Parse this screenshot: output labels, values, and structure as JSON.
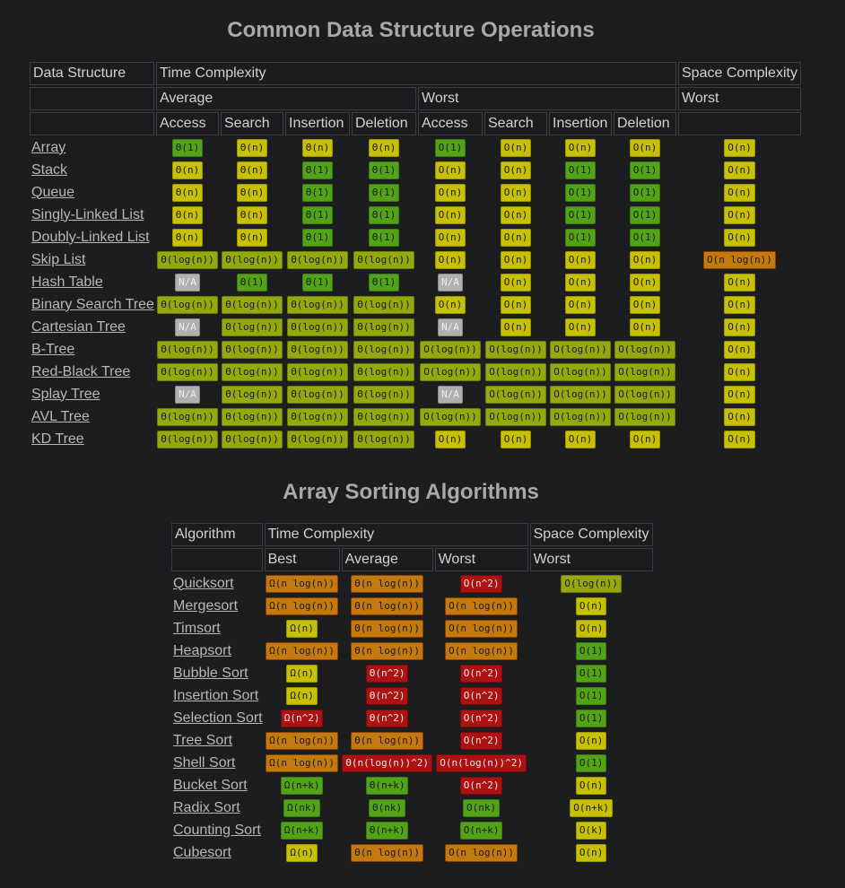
{
  "ops": {
    "title": "Common Data Structure Operations",
    "header": {
      "data_structure": "Data Structure",
      "time_complexity": "Time Complexity",
      "space_complexity": "Space Complexity",
      "average": "Average",
      "worst": "Worst",
      "space_worst": "Worst",
      "cols": [
        "Access",
        "Search",
        "Insertion",
        "Deletion",
        "Access",
        "Search",
        "Insertion",
        "Deletion"
      ]
    },
    "rows": [
      {
        "name": "Array",
        "cells": [
          [
            "Θ(1)",
            "green"
          ],
          [
            "Θ(n)",
            "yellow"
          ],
          [
            "Θ(n)",
            "yellow"
          ],
          [
            "Θ(n)",
            "yellow"
          ],
          [
            "O(1)",
            "green"
          ],
          [
            "O(n)",
            "yellow"
          ],
          [
            "O(n)",
            "yellow"
          ],
          [
            "O(n)",
            "yellow"
          ],
          [
            "O(n)",
            "yellow"
          ]
        ]
      },
      {
        "name": "Stack",
        "cells": [
          [
            "Θ(n)",
            "yellow"
          ],
          [
            "Θ(n)",
            "yellow"
          ],
          [
            "Θ(1)",
            "green"
          ],
          [
            "Θ(1)",
            "green"
          ],
          [
            "O(n)",
            "yellow"
          ],
          [
            "O(n)",
            "yellow"
          ],
          [
            "O(1)",
            "green"
          ],
          [
            "O(1)",
            "green"
          ],
          [
            "O(n)",
            "yellow"
          ]
        ]
      },
      {
        "name": "Queue",
        "cells": [
          [
            "Θ(n)",
            "yellow"
          ],
          [
            "Θ(n)",
            "yellow"
          ],
          [
            "Θ(1)",
            "green"
          ],
          [
            "Θ(1)",
            "green"
          ],
          [
            "O(n)",
            "yellow"
          ],
          [
            "O(n)",
            "yellow"
          ],
          [
            "O(1)",
            "green"
          ],
          [
            "O(1)",
            "green"
          ],
          [
            "O(n)",
            "yellow"
          ]
        ]
      },
      {
        "name": "Singly-Linked List",
        "cells": [
          [
            "Θ(n)",
            "yellow"
          ],
          [
            "Θ(n)",
            "yellow"
          ],
          [
            "Θ(1)",
            "green"
          ],
          [
            "Θ(1)",
            "green"
          ],
          [
            "O(n)",
            "yellow"
          ],
          [
            "O(n)",
            "yellow"
          ],
          [
            "O(1)",
            "green"
          ],
          [
            "O(1)",
            "green"
          ],
          [
            "O(n)",
            "yellow"
          ]
        ]
      },
      {
        "name": "Doubly-Linked List",
        "cells": [
          [
            "Θ(n)",
            "yellow"
          ],
          [
            "Θ(n)",
            "yellow"
          ],
          [
            "Θ(1)",
            "green"
          ],
          [
            "Θ(1)",
            "green"
          ],
          [
            "O(n)",
            "yellow"
          ],
          [
            "O(n)",
            "yellow"
          ],
          [
            "O(1)",
            "green"
          ],
          [
            "O(1)",
            "green"
          ],
          [
            "O(n)",
            "yellow"
          ]
        ]
      },
      {
        "name": "Skip List",
        "cells": [
          [
            "Θ(log(n))",
            "yellow-green"
          ],
          [
            "Θ(log(n))",
            "yellow-green"
          ],
          [
            "Θ(log(n))",
            "yellow-green"
          ],
          [
            "Θ(log(n))",
            "yellow-green"
          ],
          [
            "O(n)",
            "yellow"
          ],
          [
            "O(n)",
            "yellow"
          ],
          [
            "O(n)",
            "yellow"
          ],
          [
            "O(n)",
            "yellow"
          ],
          [
            "O(n log(n))",
            "orange"
          ]
        ]
      },
      {
        "name": "Hash Table",
        "cells": [
          [
            "N/A",
            "gray"
          ],
          [
            "Θ(1)",
            "green"
          ],
          [
            "Θ(1)",
            "green"
          ],
          [
            "Θ(1)",
            "green"
          ],
          [
            "N/A",
            "gray"
          ],
          [
            "O(n)",
            "yellow"
          ],
          [
            "O(n)",
            "yellow"
          ],
          [
            "O(n)",
            "yellow"
          ],
          [
            "O(n)",
            "yellow"
          ]
        ]
      },
      {
        "name": "Binary Search Tree",
        "cells": [
          [
            "Θ(log(n))",
            "yellow-green"
          ],
          [
            "Θ(log(n))",
            "yellow-green"
          ],
          [
            "Θ(log(n))",
            "yellow-green"
          ],
          [
            "Θ(log(n))",
            "yellow-green"
          ],
          [
            "O(n)",
            "yellow"
          ],
          [
            "O(n)",
            "yellow"
          ],
          [
            "O(n)",
            "yellow"
          ],
          [
            "O(n)",
            "yellow"
          ],
          [
            "O(n)",
            "yellow"
          ]
        ]
      },
      {
        "name": "Cartesian Tree",
        "cells": [
          [
            "N/A",
            "gray"
          ],
          [
            "Θ(log(n))",
            "yellow-green"
          ],
          [
            "Θ(log(n))",
            "yellow-green"
          ],
          [
            "Θ(log(n))",
            "yellow-green"
          ],
          [
            "N/A",
            "gray"
          ],
          [
            "O(n)",
            "yellow"
          ],
          [
            "O(n)",
            "yellow"
          ],
          [
            "O(n)",
            "yellow"
          ],
          [
            "O(n)",
            "yellow"
          ]
        ]
      },
      {
        "name": "B-Tree",
        "cells": [
          [
            "Θ(log(n))",
            "yellow-green"
          ],
          [
            "Θ(log(n))",
            "yellow-green"
          ],
          [
            "Θ(log(n))",
            "yellow-green"
          ],
          [
            "Θ(log(n))",
            "yellow-green"
          ],
          [
            "O(log(n))",
            "yellow-green"
          ],
          [
            "O(log(n))",
            "yellow-green"
          ],
          [
            "O(log(n))",
            "yellow-green"
          ],
          [
            "O(log(n))",
            "yellow-green"
          ],
          [
            "O(n)",
            "yellow"
          ]
        ]
      },
      {
        "name": "Red-Black Tree",
        "cells": [
          [
            "Θ(log(n))",
            "yellow-green"
          ],
          [
            "Θ(log(n))",
            "yellow-green"
          ],
          [
            "Θ(log(n))",
            "yellow-green"
          ],
          [
            "Θ(log(n))",
            "yellow-green"
          ],
          [
            "O(log(n))",
            "yellow-green"
          ],
          [
            "O(log(n))",
            "yellow-green"
          ],
          [
            "O(log(n))",
            "yellow-green"
          ],
          [
            "O(log(n))",
            "yellow-green"
          ],
          [
            "O(n)",
            "yellow"
          ]
        ]
      },
      {
        "name": "Splay Tree",
        "cells": [
          [
            "N/A",
            "gray"
          ],
          [
            "Θ(log(n))",
            "yellow-green"
          ],
          [
            "Θ(log(n))",
            "yellow-green"
          ],
          [
            "Θ(log(n))",
            "yellow-green"
          ],
          [
            "N/A",
            "gray"
          ],
          [
            "O(log(n))",
            "yellow-green"
          ],
          [
            "O(log(n))",
            "yellow-green"
          ],
          [
            "O(log(n))",
            "yellow-green"
          ],
          [
            "O(n)",
            "yellow"
          ]
        ]
      },
      {
        "name": "AVL Tree",
        "cells": [
          [
            "Θ(log(n))",
            "yellow-green"
          ],
          [
            "Θ(log(n))",
            "yellow-green"
          ],
          [
            "Θ(log(n))",
            "yellow-green"
          ],
          [
            "Θ(log(n))",
            "yellow-green"
          ],
          [
            "O(log(n))",
            "yellow-green"
          ],
          [
            "O(log(n))",
            "yellow-green"
          ],
          [
            "O(log(n))",
            "yellow-green"
          ],
          [
            "O(log(n))",
            "yellow-green"
          ],
          [
            "O(n)",
            "yellow"
          ]
        ]
      },
      {
        "name": "KD Tree",
        "cells": [
          [
            "Θ(log(n))",
            "yellow-green"
          ],
          [
            "Θ(log(n))",
            "yellow-green"
          ],
          [
            "Θ(log(n))",
            "yellow-green"
          ],
          [
            "Θ(log(n))",
            "yellow-green"
          ],
          [
            "O(n)",
            "yellow"
          ],
          [
            "O(n)",
            "yellow"
          ],
          [
            "O(n)",
            "yellow"
          ],
          [
            "O(n)",
            "yellow"
          ],
          [
            "O(n)",
            "yellow"
          ]
        ]
      }
    ]
  },
  "sorts": {
    "title": "Array Sorting Algorithms",
    "header": {
      "algorithm": "Algorithm",
      "time_complexity": "Time Complexity",
      "space_complexity": "Space Complexity",
      "best": "Best",
      "average": "Average",
      "worst": "Worst",
      "space_worst": "Worst"
    },
    "rows": [
      {
        "name": "Quicksort",
        "cells": [
          [
            "Ω(n log(n))",
            "orange"
          ],
          [
            "Θ(n log(n))",
            "orange"
          ],
          [
            "O(n^2)",
            "red"
          ],
          [
            "O(log(n))",
            "yellow-green"
          ]
        ]
      },
      {
        "name": "Mergesort",
        "cells": [
          [
            "Ω(n log(n))",
            "orange"
          ],
          [
            "Θ(n log(n))",
            "orange"
          ],
          [
            "O(n log(n))",
            "orange"
          ],
          [
            "O(n)",
            "yellow"
          ]
        ]
      },
      {
        "name": "Timsort",
        "cells": [
          [
            "Ω(n)",
            "yellow"
          ],
          [
            "Θ(n log(n))",
            "orange"
          ],
          [
            "O(n log(n))",
            "orange"
          ],
          [
            "O(n)",
            "yellow"
          ]
        ]
      },
      {
        "name": "Heapsort",
        "cells": [
          [
            "Ω(n log(n))",
            "orange"
          ],
          [
            "Θ(n log(n))",
            "orange"
          ],
          [
            "O(n log(n))",
            "orange"
          ],
          [
            "O(1)",
            "green"
          ]
        ]
      },
      {
        "name": "Bubble Sort",
        "cells": [
          [
            "Ω(n)",
            "yellow"
          ],
          [
            "Θ(n^2)",
            "red"
          ],
          [
            "O(n^2)",
            "red"
          ],
          [
            "O(1)",
            "green"
          ]
        ]
      },
      {
        "name": "Insertion Sort",
        "cells": [
          [
            "Ω(n)",
            "yellow"
          ],
          [
            "Θ(n^2)",
            "red"
          ],
          [
            "O(n^2)",
            "red"
          ],
          [
            "O(1)",
            "green"
          ]
        ]
      },
      {
        "name": "Selection Sort",
        "cells": [
          [
            "Ω(n^2)",
            "red"
          ],
          [
            "Θ(n^2)",
            "red"
          ],
          [
            "O(n^2)",
            "red"
          ],
          [
            "O(1)",
            "green"
          ]
        ]
      },
      {
        "name": "Tree Sort",
        "cells": [
          [
            "Ω(n log(n))",
            "orange"
          ],
          [
            "Θ(n log(n))",
            "orange"
          ],
          [
            "O(n^2)",
            "red"
          ],
          [
            "O(n)",
            "yellow"
          ]
        ]
      },
      {
        "name": "Shell Sort",
        "cells": [
          [
            "Ω(n log(n))",
            "orange"
          ],
          [
            "Θ(n(log(n))^2)",
            "red"
          ],
          [
            "O(n(log(n))^2)",
            "red"
          ],
          [
            "O(1)",
            "green"
          ]
        ]
      },
      {
        "name": "Bucket Sort",
        "cells": [
          [
            "Ω(n+k)",
            "green"
          ],
          [
            "Θ(n+k)",
            "green"
          ],
          [
            "O(n^2)",
            "red"
          ],
          [
            "O(n)",
            "yellow"
          ]
        ]
      },
      {
        "name": "Radix Sort",
        "cells": [
          [
            "Ω(nk)",
            "green"
          ],
          [
            "Θ(nk)",
            "green"
          ],
          [
            "O(nk)",
            "green"
          ],
          [
            "O(n+k)",
            "yellow"
          ]
        ]
      },
      {
        "name": "Counting Sort",
        "cells": [
          [
            "Ω(n+k)",
            "green"
          ],
          [
            "Θ(n+k)",
            "green"
          ],
          [
            "O(n+k)",
            "green"
          ],
          [
            "O(k)",
            "yellow"
          ]
        ]
      },
      {
        "name": "Cubesort",
        "cells": [
          [
            "Ω(n)",
            "yellow"
          ],
          [
            "Θ(n log(n))",
            "orange"
          ],
          [
            "O(n log(n))",
            "orange"
          ],
          [
            "O(n)",
            "yellow"
          ]
        ]
      }
    ]
  }
}
